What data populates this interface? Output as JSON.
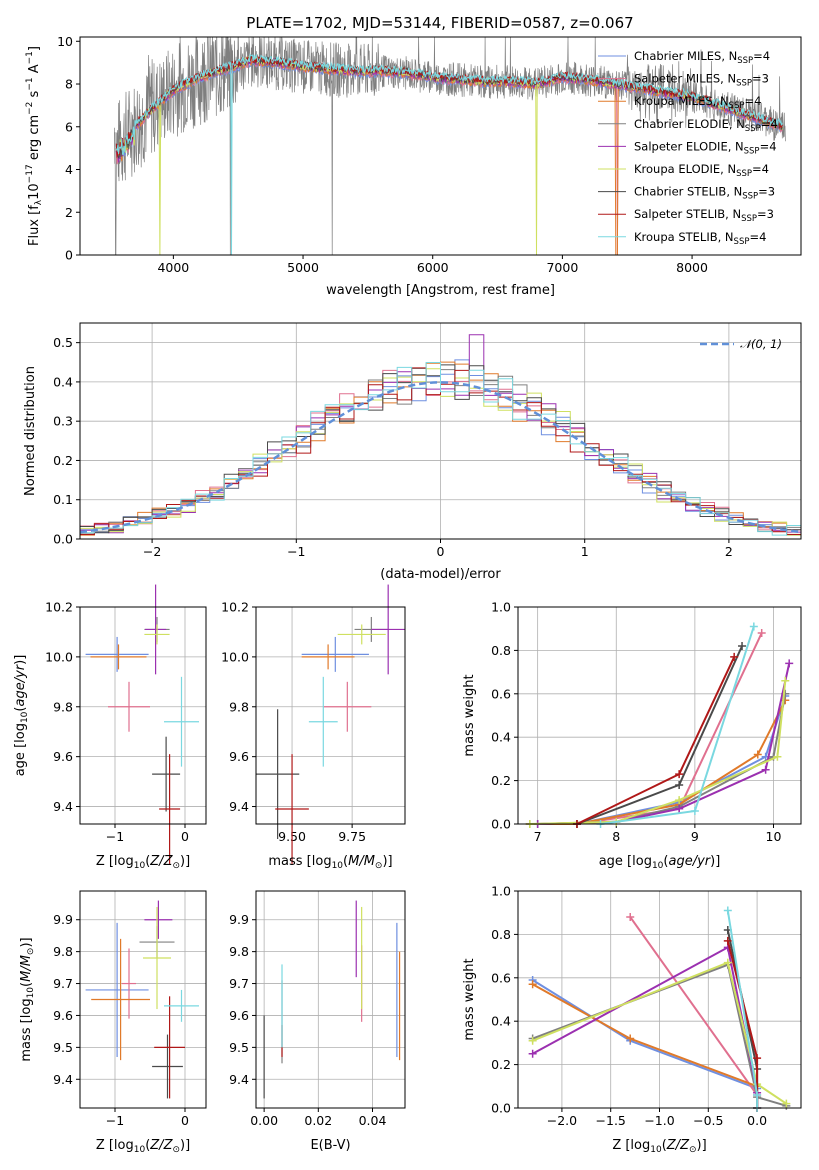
{
  "title": "PLATE=1702, MJD=53144, FIBERID=0587, z=0.067",
  "models": [
    {
      "name": "Chabrier MILES",
      "nssp": "4",
      "color": "#6f8fe0"
    },
    {
      "name": "Salpeter MILES",
      "nssp": "3",
      "color": "#e0708f"
    },
    {
      "name": "Kroupa MILES",
      "nssp": "4",
      "color": "#e07a2a"
    },
    {
      "name": "Chabrier ELODIE",
      "nssp": "4",
      "color": "#808080"
    },
    {
      "name": "Salpeter ELODIE",
      "nssp": "4",
      "color": "#9b30b0"
    },
    {
      "name": "Kroupa ELODIE",
      "nssp": "4",
      "color": "#cfe060"
    },
    {
      "name": "Chabrier STELIB",
      "nssp": "3",
      "color": "#4a4a4a"
    },
    {
      "name": "Salpeter STELIB",
      "nssp": "3",
      "color": "#b01818"
    },
    {
      "name": "Kroupa STELIB",
      "nssp": "4",
      "color": "#7ad8e0"
    }
  ],
  "chart_data": [
    {
      "type": "line",
      "id": "spectrum",
      "xlabel": "wavelength [Angstrom, rest frame]",
      "ylabel": "Flux [f_λ 10^-17 erg cm^-2 s^-1 A^-1]",
      "xlim": [
        3280,
        8840
      ],
      "ylim": [
        0,
        10.2
      ],
      "xticks": [
        4000,
        5000,
        6000,
        7000,
        8000
      ],
      "yticks": [
        0,
        2,
        4,
        6,
        8,
        10
      ],
      "continuum": [
        [
          3560,
          5.0
        ],
        [
          3650,
          5.7
        ],
        [
          3750,
          6.3
        ],
        [
          3850,
          6.9
        ],
        [
          4000,
          7.7
        ],
        [
          4200,
          8.3
        ],
        [
          4400,
          8.7
        ],
        [
          4600,
          9.1
        ],
        [
          4800,
          9.0
        ],
        [
          5000,
          8.8
        ],
        [
          5200,
          8.7
        ],
        [
          5400,
          8.6
        ],
        [
          5600,
          8.6
        ],
        [
          5800,
          8.5
        ],
        [
          6000,
          8.3
        ],
        [
          6200,
          8.2
        ],
        [
          6400,
          8.1
        ],
        [
          6600,
          8.1
        ],
        [
          6800,
          8.0
        ],
        [
          7000,
          8.3
        ],
        [
          7200,
          8.2
        ],
        [
          7400,
          8.0
        ],
        [
          7600,
          7.8
        ],
        [
          7800,
          7.6
        ],
        [
          8000,
          7.4
        ],
        [
          8200,
          7.0
        ],
        [
          8400,
          6.6
        ],
        [
          8600,
          6.2
        ],
        [
          8700,
          6.0
        ]
      ],
      "legend": "upper right",
      "grid": false
    },
    {
      "type": "bar",
      "id": "residual_histogram",
      "xlabel": "(data-model)/error",
      "ylabel": "Normed distribution",
      "xlim": [
        -2.5,
        2.5
      ],
      "ylim": [
        0,
        0.55
      ],
      "xticks": [
        -2,
        -1,
        0,
        1,
        2
      ],
      "yticks": [
        0.0,
        0.1,
        0.2,
        0.3,
        0.4,
        0.5
      ],
      "bin_width": 0.1,
      "reference_curve": "N(0,1)",
      "legend": "upper right",
      "grid": true
    },
    {
      "type": "scatter",
      "id": "age_vs_Z",
      "xlabel": "Z [log10(Z/Z_sun)]",
      "ylabel": "age [log10(age/yr)]",
      "xlim": [
        -1.5,
        0.3
      ],
      "ylim": [
        9.33,
        10.2
      ],
      "xticks": [
        -1,
        0
      ],
      "yticks": [
        9.4,
        9.6,
        9.8,
        10.0,
        10.2
      ],
      "points": [
        {
          "x": -0.97,
          "y": 10.01,
          "xerr": 0.45,
          "yerr": 0.07
        },
        {
          "x": -0.8,
          "y": 9.8,
          "xerr": 0.3,
          "yerr": 0.1
        },
        {
          "x": -0.95,
          "y": 10.0,
          "xerr": 0.4,
          "yerr": 0.05
        },
        {
          "x": -0.4,
          "y": 10.11,
          "xerr": 0.18,
          "yerr": 0.05
        },
        {
          "x": -0.42,
          "y": 10.11,
          "xerr": 0.15,
          "yerr": 0.18
        },
        {
          "x": -0.4,
          "y": 10.09,
          "xerr": 0.18,
          "yerr": 0.04
        },
        {
          "x": -0.27,
          "y": 9.53,
          "xerr": 0.2,
          "yerr": 0.15
        },
        {
          "x": -0.22,
          "y": 9.39,
          "xerr": 0.15,
          "yerr": 0.22
        },
        {
          "x": -0.05,
          "y": 9.74,
          "xerr": 0.25,
          "yerr": 0.18
        }
      ]
    },
    {
      "type": "scatter",
      "id": "age_vs_mass",
      "xlabel": "mass [log10(M/M_sun)]",
      "ylabel": "",
      "xlim": [
        9.35,
        9.97
      ],
      "ylim": [
        9.33,
        10.2
      ],
      "xticks": [
        9.5,
        9.75
      ],
      "yticks": [
        9.4,
        9.6,
        9.8,
        10.0,
        10.2
      ],
      "points": [
        {
          "x": 9.68,
          "y": 10.01,
          "xerr": 0.14,
          "yerr": 0.07
        },
        {
          "x": 9.73,
          "y": 9.8,
          "xerr": 0.1,
          "yerr": 0.1
        },
        {
          "x": 9.65,
          "y": 10.0,
          "xerr": 0.11,
          "yerr": 0.05
        },
        {
          "x": 9.83,
          "y": 10.11,
          "xerr": 0.07,
          "yerr": 0.05
        },
        {
          "x": 9.9,
          "y": 10.11,
          "xerr": 0.07,
          "yerr": 0.18
        },
        {
          "x": 9.79,
          "y": 10.09,
          "xerr": 0.1,
          "yerr": 0.04
        },
        {
          "x": 9.44,
          "y": 9.53,
          "xerr": 0.09,
          "yerr": 0.26
        },
        {
          "x": 9.5,
          "y": 9.39,
          "xerr": 0.07,
          "yerr": 0.22
        },
        {
          "x": 9.63,
          "y": 9.74,
          "xerr": 0.06,
          "yerr": 0.18
        }
      ]
    },
    {
      "type": "line",
      "id": "mass_weight_vs_age",
      "xlabel": "age [log10(age/yr)]",
      "ylabel": "mass weight",
      "xlim": [
        6.75,
        10.35
      ],
      "ylim": [
        0,
        1.0
      ],
      "xticks": [
        7,
        8,
        9,
        10
      ],
      "yticks": [
        0.0,
        0.2,
        0.4,
        0.6,
        0.8,
        1.0
      ],
      "grid": true,
      "series": [
        {
          "x": [
            6.9,
            7.5,
            8.8,
            9.9,
            10.15
          ],
          "y": [
            0.0,
            0.0,
            0.1,
            0.31,
            0.59
          ]
        },
        {
          "x": [
            7.5,
            8.8,
            9.85
          ],
          "y": [
            0.0,
            0.07,
            0.88
          ]
        },
        {
          "x": [
            6.9,
            7.5,
            8.8,
            9.8,
            10.15
          ],
          "y": [
            0.0,
            0.0,
            0.09,
            0.32,
            0.57
          ]
        },
        {
          "x": [
            7.0,
            8.0,
            8.8,
            10.0,
            10.15
          ],
          "y": [
            0.0,
            0.01,
            0.08,
            0.31,
            0.6
          ]
        },
        {
          "x": [
            7.0,
            8.0,
            8.8,
            9.9,
            10.2
          ],
          "y": [
            0.0,
            0.01,
            0.07,
            0.25,
            0.74
          ]
        },
        {
          "x": [
            6.9,
            8.0,
            8.8,
            10.05,
            10.15
          ],
          "y": [
            0.0,
            0.01,
            0.11,
            0.31,
            0.66
          ]
        },
        {
          "x": [
            7.5,
            8.8,
            9.6
          ],
          "y": [
            0.0,
            0.18,
            0.82
          ]
        },
        {
          "x": [
            7.5,
            8.8,
            9.5
          ],
          "y": [
            0.0,
            0.23,
            0.77
          ]
        },
        {
          "x": [
            7.8,
            9.0,
            9.75
          ],
          "y": [
            0.0,
            0.06,
            0.91
          ]
        }
      ]
    },
    {
      "type": "scatter",
      "id": "mass_vs_Z",
      "xlabel": "Z [log10(Z/Z_sun)]",
      "ylabel": "mass [log10(M/M_sun)]",
      "xlim": [
        -1.5,
        0.3
      ],
      "ylim": [
        9.31,
        9.99
      ],
      "xticks": [
        -1,
        0
      ],
      "yticks": [
        9.4,
        9.5,
        9.6,
        9.7,
        9.8,
        9.9
      ],
      "points": [
        {
          "x": -0.97,
          "y": 9.68,
          "xerr": 0.45,
          "yerr": 0.21
        },
        {
          "x": -0.8,
          "y": 9.7,
          "xerr": 0.1,
          "yerr": 0.11
        },
        {
          "x": -0.92,
          "y": 9.65,
          "xerr": 0.42,
          "yerr": 0.19
        },
        {
          "x": -0.4,
          "y": 9.83,
          "xerr": 0.25,
          "yerr": 0.05
        },
        {
          "x": -0.38,
          "y": 9.9,
          "xerr": 0.2,
          "yerr": 0.06
        },
        {
          "x": -0.4,
          "y": 9.78,
          "xerr": 0.2,
          "yerr": 0.16
        },
        {
          "x": -0.25,
          "y": 9.44,
          "xerr": 0.22,
          "yerr": 0.1
        },
        {
          "x": -0.22,
          "y": 9.5,
          "xerr": 0.22,
          "yerr": 0.16
        },
        {
          "x": -0.05,
          "y": 9.63,
          "xerr": 0.25,
          "yerr": 0.05
        }
      ]
    },
    {
      "type": "scatter",
      "id": "mass_vs_ebv",
      "xlabel": "E(B-V)",
      "ylabel": "",
      "xlim": [
        -0.003,
        0.052
      ],
      "ylim": [
        9.31,
        9.99
      ],
      "xticks": [
        0.0,
        0.02,
        0.04
      ],
      "yticks": [
        9.4,
        9.5,
        9.6,
        9.7,
        9.8,
        9.9
      ],
      "points": [
        {
          "x": 0.049,
          "y": 9.68,
          "yerr": 0.21
        },
        {
          "x": 0.036,
          "y": 9.7,
          "yerr": 0.12
        },
        {
          "x": 0.05,
          "y": 9.63,
          "yerr": 0.17
        },
        {
          "x": 0.0066,
          "y": 9.58,
          "yerr": 0.13
        },
        {
          "x": 0.034,
          "y": 9.84,
          "yerr": 0.12
        },
        {
          "x": 0.036,
          "y": 9.78,
          "yerr": 0.16
        },
        {
          "x": 0.0,
          "y": 9.47,
          "yerr": 0.13
        },
        {
          "x": 0.0066,
          "y": 9.52,
          "yerr": 0.05
        },
        {
          "x": 0.0066,
          "y": 9.63,
          "yerr": 0.13
        }
      ]
    },
    {
      "type": "line",
      "id": "mass_weight_vs_Z",
      "xlabel": "Z [log10(Z/Z_sun)]",
      "ylabel": "mass weight",
      "xlim": [
        -2.45,
        0.45
      ],
      "ylim": [
        0,
        1.0
      ],
      "xticks": [
        -2.0,
        -1.5,
        -1.0,
        -0.5,
        0.0
      ],
      "yticks": [
        0.0,
        0.2,
        0.4,
        0.6,
        0.8,
        1.0
      ],
      "grid": true,
      "series": [
        {
          "x": [
            -2.3,
            -1.3,
            0.0,
            0.0
          ],
          "y": [
            0.59,
            0.31,
            0.09,
            0.0
          ]
        },
        {
          "x": [
            -1.3,
            0.0,
            0.0
          ],
          "y": [
            0.88,
            0.06,
            0.0
          ]
        },
        {
          "x": [
            -2.3,
            -1.3,
            0.0,
            0.0
          ],
          "y": [
            0.57,
            0.32,
            0.1,
            0.0
          ]
        },
        {
          "x": [
            -2.3,
            -0.3,
            0.0,
            0.3
          ],
          "y": [
            0.32,
            0.66,
            0.05,
            0.01
          ]
        },
        {
          "x": [
            -2.3,
            -0.3,
            0.0,
            0.0
          ],
          "y": [
            0.25,
            0.74,
            0.07,
            0.0
          ]
        },
        {
          "x": [
            -2.3,
            -0.3,
            0.0,
            0.3
          ],
          "y": [
            0.31,
            0.67,
            0.11,
            0.02
          ]
        },
        {
          "x": [
            -0.3,
            0.0,
            0.0
          ],
          "y": [
            0.82,
            0.18,
            0.0
          ]
        },
        {
          "x": [
            -0.3,
            0.0,
            0.0
          ],
          "y": [
            0.77,
            0.23,
            0.0
          ]
        },
        {
          "x": [
            -0.3,
            0.0,
            0.0
          ],
          "y": [
            0.91,
            0.06,
            0.0
          ]
        }
      ]
    }
  ]
}
